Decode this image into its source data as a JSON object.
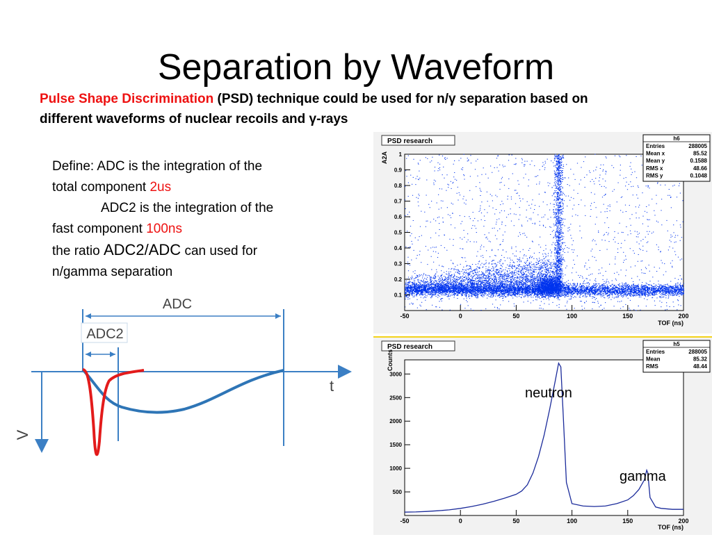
{
  "slide": {
    "title": "Separation by Waveform",
    "subtitle": {
      "highlight": "Pulse Shape Discrimination",
      "rest_line1": " (PSD) technique could be used for n/γ separation based on",
      "line2": "different waveforms of nuclear recoils and γ-rays"
    },
    "definition": {
      "l1": "Define: ADC is the integration of the",
      "l2a": "total component ",
      "l2b": "2us",
      "l3": "ADC2 is the integration of the",
      "l4a": "fast component ",
      "l4b": "100ns",
      "l5a": "the ratio ",
      "l5b": "ADC2/ADC",
      "l5c": "  can used for",
      "l6": "n/gamma separation"
    },
    "waveform_diagram": {
      "adc_label": "ADC",
      "adc2_label": "ADC2",
      "t_label": "t",
      "v_label": "V"
    }
  },
  "chart_data": [
    {
      "type": "scatter",
      "pad_title": "PSD research",
      "xlabel": "TOF (ns)",
      "ylabel": "A2A",
      "xlim": [
        -50,
        200
      ],
      "ylim": [
        0,
        1
      ],
      "x_ticks": [
        "-50",
        "0",
        "50",
        "100",
        "150",
        "200"
      ],
      "y_ticks": [
        "0.1",
        "0.2",
        "0.3",
        "0.4",
        "0.5",
        "0.6",
        "0.7",
        "0.8",
        "0.9",
        "1"
      ],
      "stats": {
        "name": "h6",
        "rows": [
          [
            "Entries",
            "288005"
          ],
          [
            "Mean x",
            "85.52"
          ],
          [
            "Mean y",
            "0.1588"
          ],
          [
            "RMS x",
            "48.66"
          ],
          [
            "RMS y",
            "0.1048"
          ]
        ]
      },
      "color": "#0033ee"
    },
    {
      "type": "line",
      "pad_title": "PSD research",
      "xlabel": "TOF (ns)",
      "ylabel": "Counts",
      "xlim": [
        -50,
        200
      ],
      "ylim": [
        0,
        3300
      ],
      "x_ticks": [
        "-50",
        "0",
        "50",
        "100",
        "150",
        "200"
      ],
      "y_ticks": [
        "500",
        "1000",
        "1500",
        "2000",
        "2500",
        "3000"
      ],
      "stats": {
        "name": "h5",
        "rows": [
          [
            "Entries",
            "288005"
          ],
          [
            "Mean",
            "85.32"
          ],
          [
            "RMS",
            "48.44"
          ]
        ]
      },
      "annotations": [
        "neutron",
        "gamma"
      ],
      "color": "#1a2a9a",
      "x": [
        -50,
        -40,
        -30,
        -20,
        -10,
        0,
        10,
        20,
        30,
        40,
        50,
        55,
        60,
        65,
        70,
        75,
        80,
        85,
        88,
        90,
        92,
        95,
        100,
        110,
        120,
        130,
        140,
        150,
        155,
        160,
        165,
        167,
        168,
        170,
        175,
        180,
        190,
        200
      ],
      "y": [
        70,
        75,
        85,
        100,
        120,
        150,
        190,
        240,
        300,
        370,
        450,
        520,
        650,
        900,
        1250,
        1700,
        2250,
        2850,
        3230,
        3150,
        2200,
        700,
        250,
        200,
        190,
        200,
        250,
        330,
        420,
        550,
        760,
        960,
        900,
        380,
        180,
        150,
        130,
        130
      ]
    }
  ]
}
